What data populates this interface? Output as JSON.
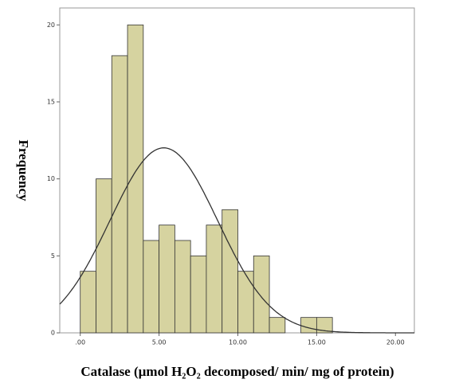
{
  "chart_data": {
    "type": "histogram",
    "x_label": "Catalase (µmol H₂O₂ decomposed/ min/ mg of protein)",
    "y_label": "Frequency",
    "bins": [
      0,
      1,
      2,
      3,
      4,
      5,
      6,
      7,
      8,
      9,
      10,
      11,
      12,
      13,
      14,
      15,
      16
    ],
    "counts": [
      4,
      10,
      18,
      20,
      6,
      7,
      6,
      5,
      7,
      8,
      4,
      5,
      1,
      0,
      1,
      1
    ],
    "color": "#d6d3a0",
    "normal_curve": {
      "mean": 5.3,
      "std": 3.42
    },
    "xlim": [
      -1.3,
      21.2
    ],
    "ylim": [
      0,
      21.1
    ],
    "xticks": [
      {
        "value": 0,
        "label": ".00"
      },
      {
        "value": 5,
        "label": "5.00"
      },
      {
        "value": 10,
        "label": "10.00"
      },
      {
        "value": 15,
        "label": "15.00"
      },
      {
        "value": 20,
        "label": "20.00"
      }
    ],
    "yticks": [
      0,
      5,
      10,
      15,
      20
    ]
  }
}
